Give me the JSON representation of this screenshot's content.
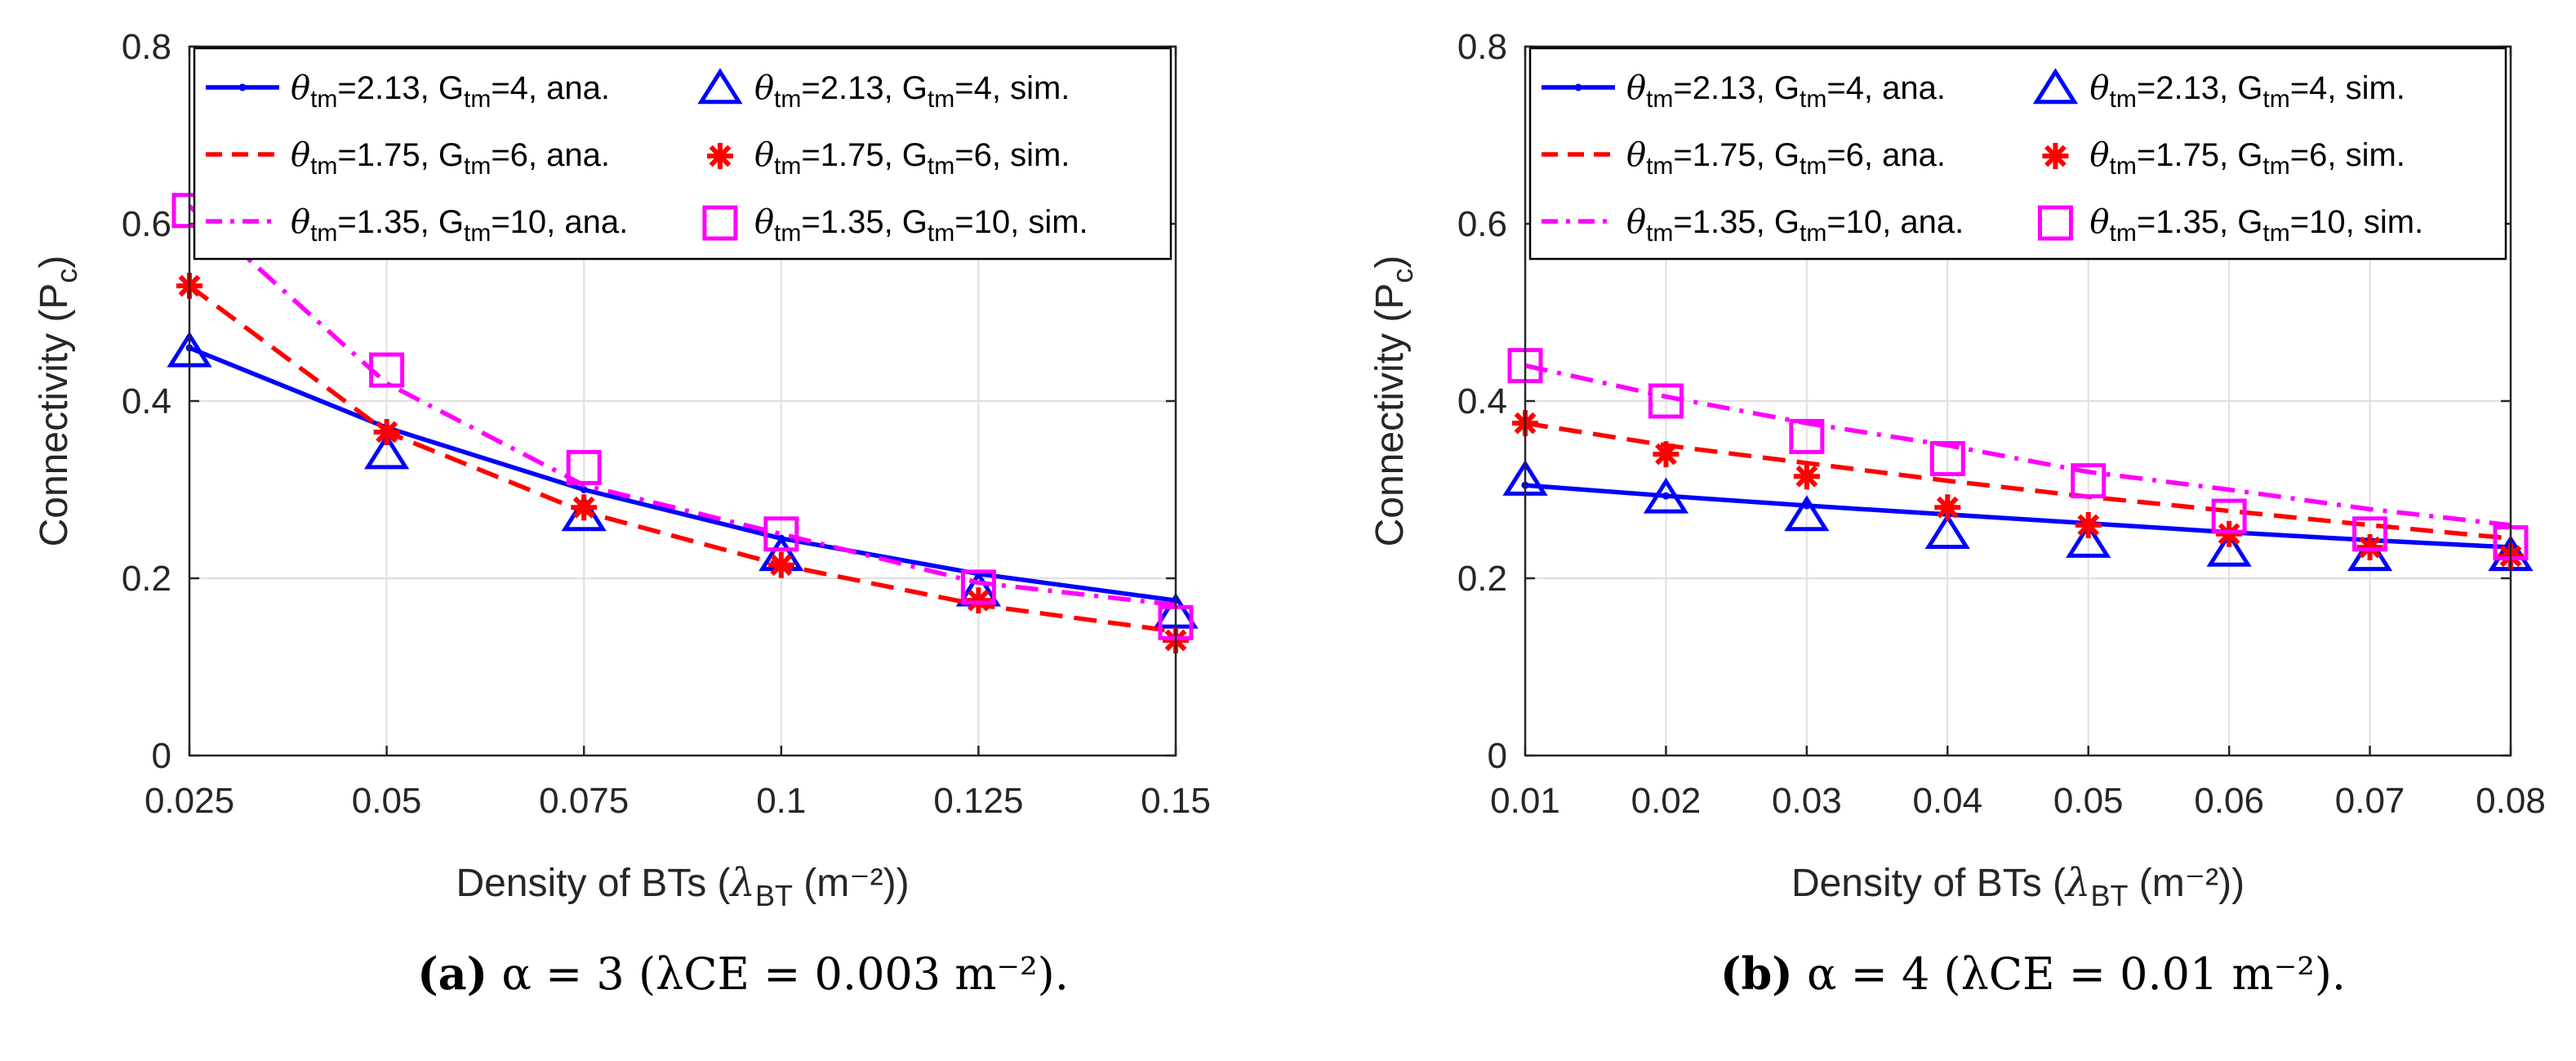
{
  "chart_data": [
    {
      "type": "line",
      "panel": "a",
      "caption": {
        "label": "(a)",
        "text": "α = 3 (λCE = 0.003 m⁻²)."
      },
      "xlabel": "Density of BTs (λBT (m⁻²))",
      "ylabel": "Connectivity (Pc)",
      "xlim": [
        0.025,
        0.15
      ],
      "ylim": [
        0,
        0.8
      ],
      "xticks": [
        0.025,
        0.05,
        0.075,
        0.1,
        0.125,
        0.15
      ],
      "xtick_labels": [
        "0.025",
        "0.05",
        "0.075",
        "0.1",
        "0.125",
        "0.15"
      ],
      "yticks": [
        0,
        0.2,
        0.4,
        0.6,
        0.8
      ],
      "ytick_labels": [
        "0",
        "0.2",
        "0.4",
        "0.6",
        "0.8"
      ],
      "grid": true,
      "legend_position": "top",
      "legend": [
        {
          "theta": "2.13",
          "G": "4",
          "kind": "ana."
        },
        {
          "theta": "2.13",
          "G": "4",
          "kind": "sim."
        },
        {
          "theta": "1.75",
          "G": "6",
          "kind": "ana."
        },
        {
          "theta": "1.75",
          "G": "6",
          "kind": "sim."
        },
        {
          "theta": "1.35",
          "G": "10",
          "kind": "ana."
        },
        {
          "theta": "1.35",
          "G": "10",
          "kind": "sim."
        }
      ],
      "x": [
        0.025,
        0.05,
        0.075,
        0.1,
        0.125,
        0.15
      ],
      "series": [
        {
          "color": "#0000ff",
          "style": "solid",
          "marker": "triangle",
          "ana": [
            0.46,
            0.37,
            0.3,
            0.245,
            0.205,
            0.175
          ],
          "sim": [
            0.455,
            0.34,
            0.27,
            0.225,
            0.185,
            0.16
          ]
        },
        {
          "color": "#ff0000",
          "style": "dashed",
          "marker": "asterisk",
          "ana": [
            0.53,
            0.365,
            0.275,
            0.215,
            0.17,
            0.14
          ],
          "sim": [
            0.53,
            0.365,
            0.28,
            0.215,
            0.175,
            0.13
          ]
        },
        {
          "color": "#ff00ff",
          "style": "dashdot",
          "marker": "square",
          "ana": [
            0.62,
            0.42,
            0.305,
            0.25,
            0.195,
            0.17
          ],
          "sim": [
            0.615,
            0.435,
            0.325,
            0.25,
            0.19,
            0.15
          ]
        }
      ]
    },
    {
      "type": "line",
      "panel": "b",
      "caption": {
        "label": "(b)",
        "text": "α = 4 (λCE = 0.01 m⁻²)."
      },
      "xlabel": "Density of BTs (λBT (m⁻²))",
      "ylabel": "Connectivity (Pc)",
      "xlim": [
        0.01,
        0.08
      ],
      "ylim": [
        0,
        0.8
      ],
      "xticks": [
        0.01,
        0.02,
        0.03,
        0.04,
        0.05,
        0.06,
        0.07,
        0.08
      ],
      "xtick_labels": [
        "0.01",
        "0.02",
        "0.03",
        "0.04",
        "0.05",
        "0.06",
        "0.07",
        "0.08"
      ],
      "yticks": [
        0,
        0.2,
        0.4,
        0.6,
        0.8
      ],
      "ytick_labels": [
        "0",
        "0.2",
        "0.4",
        "0.6",
        "0.8"
      ],
      "grid": true,
      "legend_position": "top",
      "legend": [
        {
          "theta": "2.13",
          "G": "4",
          "kind": "ana."
        },
        {
          "theta": "2.13",
          "G": "4",
          "kind": "sim."
        },
        {
          "theta": "1.75",
          "G": "6",
          "kind": "ana."
        },
        {
          "theta": "1.75",
          "G": "6",
          "kind": "sim."
        },
        {
          "theta": "1.35",
          "G": "10",
          "kind": "ana."
        },
        {
          "theta": "1.35",
          "G": "10",
          "kind": "sim."
        }
      ],
      "x": [
        0.01,
        0.02,
        0.03,
        0.04,
        0.05,
        0.06,
        0.07,
        0.08
      ],
      "series": [
        {
          "color": "#0000ff",
          "style": "solid",
          "marker": "triangle",
          "ana": [
            0.305,
            0.293,
            0.282,
            0.272,
            0.262,
            0.252,
            0.243,
            0.235
          ],
          "sim": [
            0.31,
            0.29,
            0.27,
            0.25,
            0.24,
            0.23,
            0.225,
            0.225
          ]
        },
        {
          "color": "#ff0000",
          "style": "dashed",
          "marker": "asterisk",
          "ana": [
            0.375,
            0.35,
            0.33,
            0.31,
            0.292,
            0.276,
            0.26,
            0.245
          ],
          "sim": [
            0.375,
            0.34,
            0.315,
            0.28,
            0.26,
            0.25,
            0.235,
            0.225
          ]
        },
        {
          "color": "#ff00ff",
          "style": "dashdot",
          "marker": "square",
          "ana": [
            0.44,
            0.405,
            0.375,
            0.35,
            0.32,
            0.3,
            0.278,
            0.26
          ],
          "sim": [
            0.44,
            0.4,
            0.36,
            0.335,
            0.31,
            0.27,
            0.25,
            0.24
          ]
        }
      ]
    }
  ]
}
